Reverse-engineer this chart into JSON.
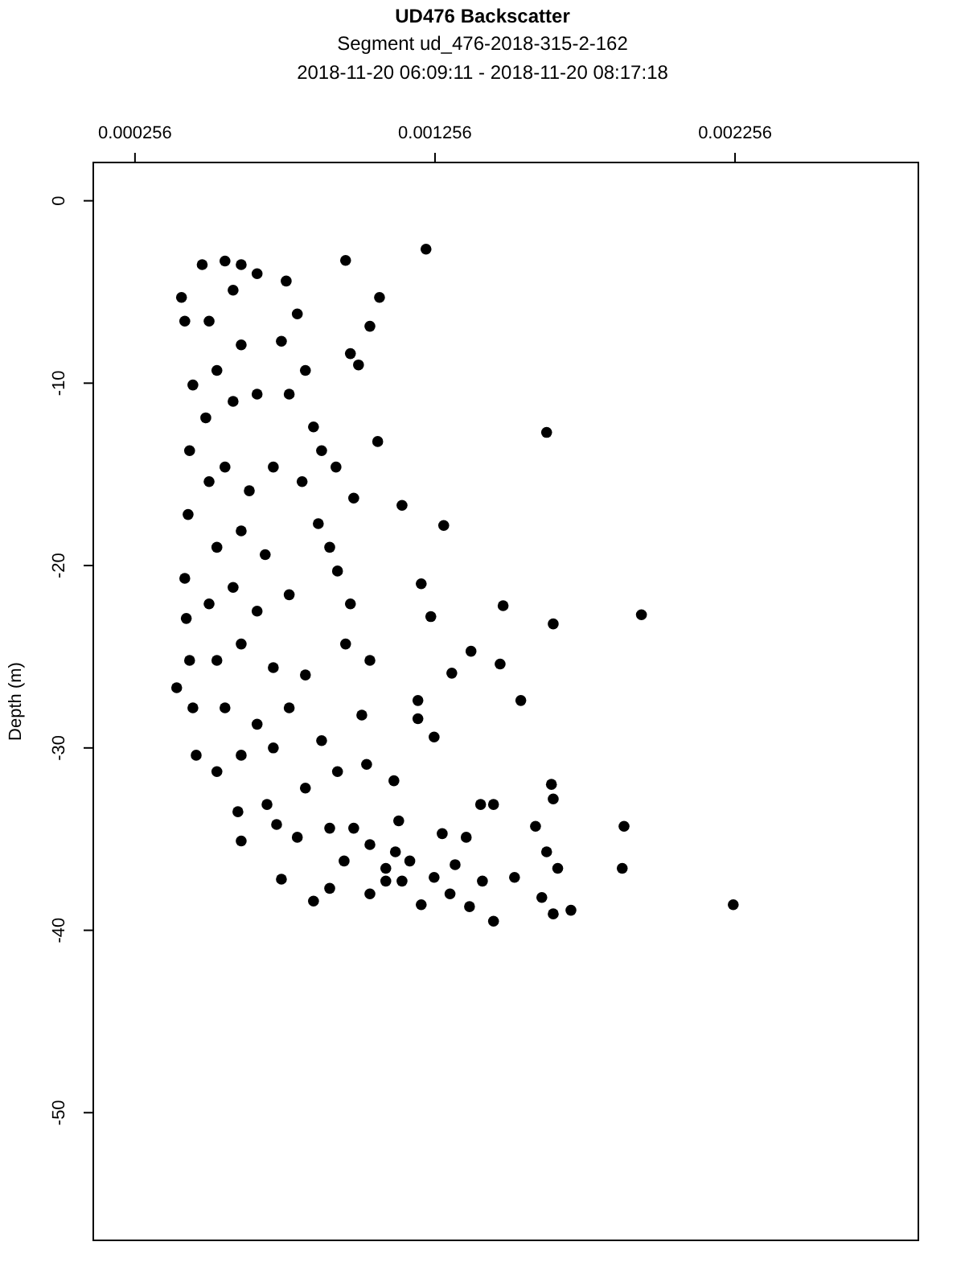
{
  "chart_data": {
    "type": "scatter",
    "title": "UD476 Backscatter",
    "subtitle": "Segment ud_476-2018-315-2-162",
    "annotations": [
      "2018-11-20 06:09:11 - 2018-11-20 08:17:18"
    ],
    "ylabel": "Depth (m)",
    "xlim": [
      0.000117,
      0.002867
    ],
    "xticks": [
      0.000256,
      0.001256,
      0.002256
    ],
    "ylim": [
      -57,
      2.1
    ],
    "yticks": [
      0,
      -10,
      -20,
      -30,
      -40,
      -50
    ],
    "grid": false,
    "marker": "circle",
    "series": [
      {
        "color": "#000000",
        "x": [
          0.001226,
          0.000958,
          0.001071,
          0.001039,
          0.000974,
          0.001001,
          0.001628,
          0.001065,
          0.001146,
          0.001285,
          0.000926,
          0.000985,
          0.00121,
          0.001483,
          0.001944,
          0.00165,
          0.001242,
          0.001376,
          0.001473,
          0.001312,
          0.001542,
          0.001199,
          0.001199,
          0.001253,
          0.001644,
          0.00165,
          0.001451,
          0.001408,
          0.001886,
          0.001591,
          0.00188,
          0.001628,
          0.001665,
          0.00225,
          0.001709,
          0.00165,
          0.001451,
          0.001612,
          0.001371,
          0.001306,
          0.00121,
          0.001146,
          0.001092,
          0.001124,
          0.001039,
          0.000953,
          0.000905,
          0.000851,
          0.000744,
          0.000728,
          0.00061,
          0.000599,
          0.000696,
          0.000824,
          0.000931,
          0.001028,
          0.001119,
          0.001135,
          0.00128,
          0.00136,
          0.001012,
          0.001039,
          0.000958,
          0.000974,
          0.000931,
          0.000905,
          0.000867,
          0.000813,
          0.000878,
          0.000851,
          0.00077,
          0.000824,
          0.000744,
          0.000797,
          0.00076,
          0.000663,
          0.000395,
          0.000411,
          0.000422,
          0.000449,
          0.000438,
          0.000433,
          0.000422,
          0.000427,
          0.000438,
          0.000449,
          0.00046,
          0.00048,
          0.000556,
          0.00061,
          0.000503,
          0.000583,
          0.000529,
          0.00061,
          0.000492,
          0.000583,
          0.000663,
          0.000503,
          0.000556,
          0.000637,
          0.000717,
          0.000529,
          0.00061,
          0.00069,
          0.000503,
          0.000583,
          0.000663,
          0.00077,
          0.000529,
          0.00061,
          0.000717,
          0.000824,
          0.000556,
          0.000663,
          0.00077,
          0.000529,
          0.00061,
          0.000717,
          0.000878,
          0.000797,
          0.000905,
          0.000985,
          0.001092,
          0.001172,
          0.001253,
          0.001323,
          0.001414,
          0.001521,
          0.001039
        ],
        "values": [
          -2.65,
          -3.27,
          -5.3,
          -6.88,
          -8.38,
          -9.0,
          -12.7,
          -13.2,
          -16.7,
          -17.8,
          -14.6,
          -16.3,
          -21.0,
          -22.2,
          -22.7,
          -23.2,
          -22.8,
          -24.7,
          -25.4,
          -25.9,
          -27.4,
          -27.4,
          -28.4,
          -29.4,
          -32.0,
          -32.8,
          -33.1,
          -33.1,
          -34.3,
          -34.3,
          -36.6,
          -35.7,
          -36.6,
          -38.6,
          -38.9,
          -39.1,
          -39.5,
          -38.2,
          -38.7,
          -38.0,
          -38.6,
          -37.3,
          -36.6,
          -35.7,
          -35.3,
          -36.2,
          -37.7,
          -38.4,
          -37.2,
          -34.2,
          -35.1,
          -33.5,
          -33.1,
          -32.2,
          -31.3,
          -30.9,
          -31.8,
          -34.0,
          -34.7,
          -34.9,
          -28.2,
          -25.2,
          -24.3,
          -22.1,
          -20.3,
          -19.0,
          -17.7,
          -15.4,
          -13.7,
          -12.4,
          -10.6,
          -9.3,
          -7.7,
          -6.2,
          -4.4,
          -4.0,
          -26.7,
          -5.3,
          -6.6,
          -10.1,
          -13.7,
          -17.2,
          -20.7,
          -22.9,
          -25.2,
          -27.8,
          -30.4,
          -3.5,
          -3.3,
          -3.5,
          -6.6,
          -4.9,
          -9.3,
          -7.9,
          -11.9,
          -11.0,
          -10.6,
          -15.4,
          -14.6,
          -15.9,
          -14.6,
          -19.0,
          -18.1,
          -19.4,
          -22.1,
          -21.2,
          -22.5,
          -21.6,
          -25.2,
          -24.3,
          -25.6,
          -26.0,
          -27.8,
          -28.7,
          -27.8,
          -31.3,
          -30.4,
          -30.0,
          -29.6,
          -34.9,
          -34.4,
          -34.4,
          -37.3,
          -36.2,
          -37.1,
          -36.4,
          -37.3,
          -37.1,
          -38.0
        ]
      }
    ]
  }
}
